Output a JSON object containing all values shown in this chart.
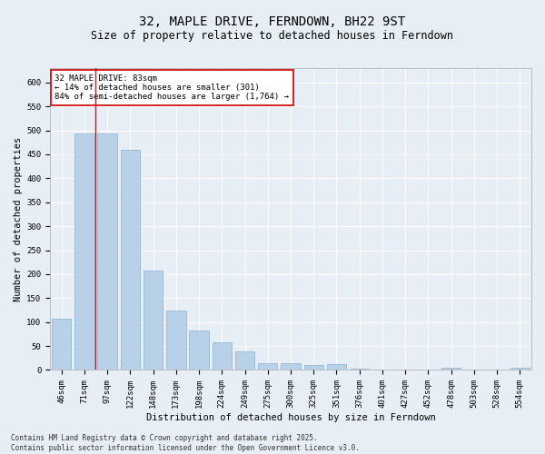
{
  "title": "32, MAPLE DRIVE, FERNDOWN, BH22 9ST",
  "subtitle": "Size of property relative to detached houses in Ferndown",
  "xlabel": "Distribution of detached houses by size in Ferndown",
  "ylabel": "Number of detached properties",
  "categories": [
    "46sqm",
    "71sqm",
    "97sqm",
    "122sqm",
    "148sqm",
    "173sqm",
    "198sqm",
    "224sqm",
    "249sqm",
    "275sqm",
    "300sqm",
    "325sqm",
    "351sqm",
    "376sqm",
    "401sqm",
    "427sqm",
    "452sqm",
    "478sqm",
    "503sqm",
    "528sqm",
    "554sqm"
  ],
  "values": [
    107,
    494,
    494,
    460,
    207,
    124,
    82,
    57,
    39,
    14,
    14,
    10,
    12,
    3,
    1,
    0,
    0,
    5,
    0,
    0,
    5
  ],
  "bar_color": "#b8d0e8",
  "bar_edge_color": "#8ab0d0",
  "red_line_x": 1.5,
  "annotation_text": "32 MAPLE DRIVE: 83sqm\n← 14% of detached houses are smaller (301)\n84% of semi-detached houses are larger (1,764) →",
  "annotation_box_color": "#ffffff",
  "annotation_box_edge_color": "#cc0000",
  "footer_line1": "Contains HM Land Registry data © Crown copyright and database right 2025.",
  "footer_line2": "Contains public sector information licensed under the Open Government Licence v3.0.",
  "ylim": [
    0,
    630
  ],
  "yticks": [
    0,
    50,
    100,
    150,
    200,
    250,
    300,
    350,
    400,
    450,
    500,
    550,
    600
  ],
  "background_color": "#e8eef6",
  "plot_background_color": "#e8eef6",
  "grid_color": "#ffffff",
  "title_fontsize": 10,
  "subtitle_fontsize": 8.5,
  "tick_fontsize": 6.5,
  "label_fontsize": 7.5,
  "annotation_fontsize": 6.5,
  "footer_fontsize": 5.5
}
